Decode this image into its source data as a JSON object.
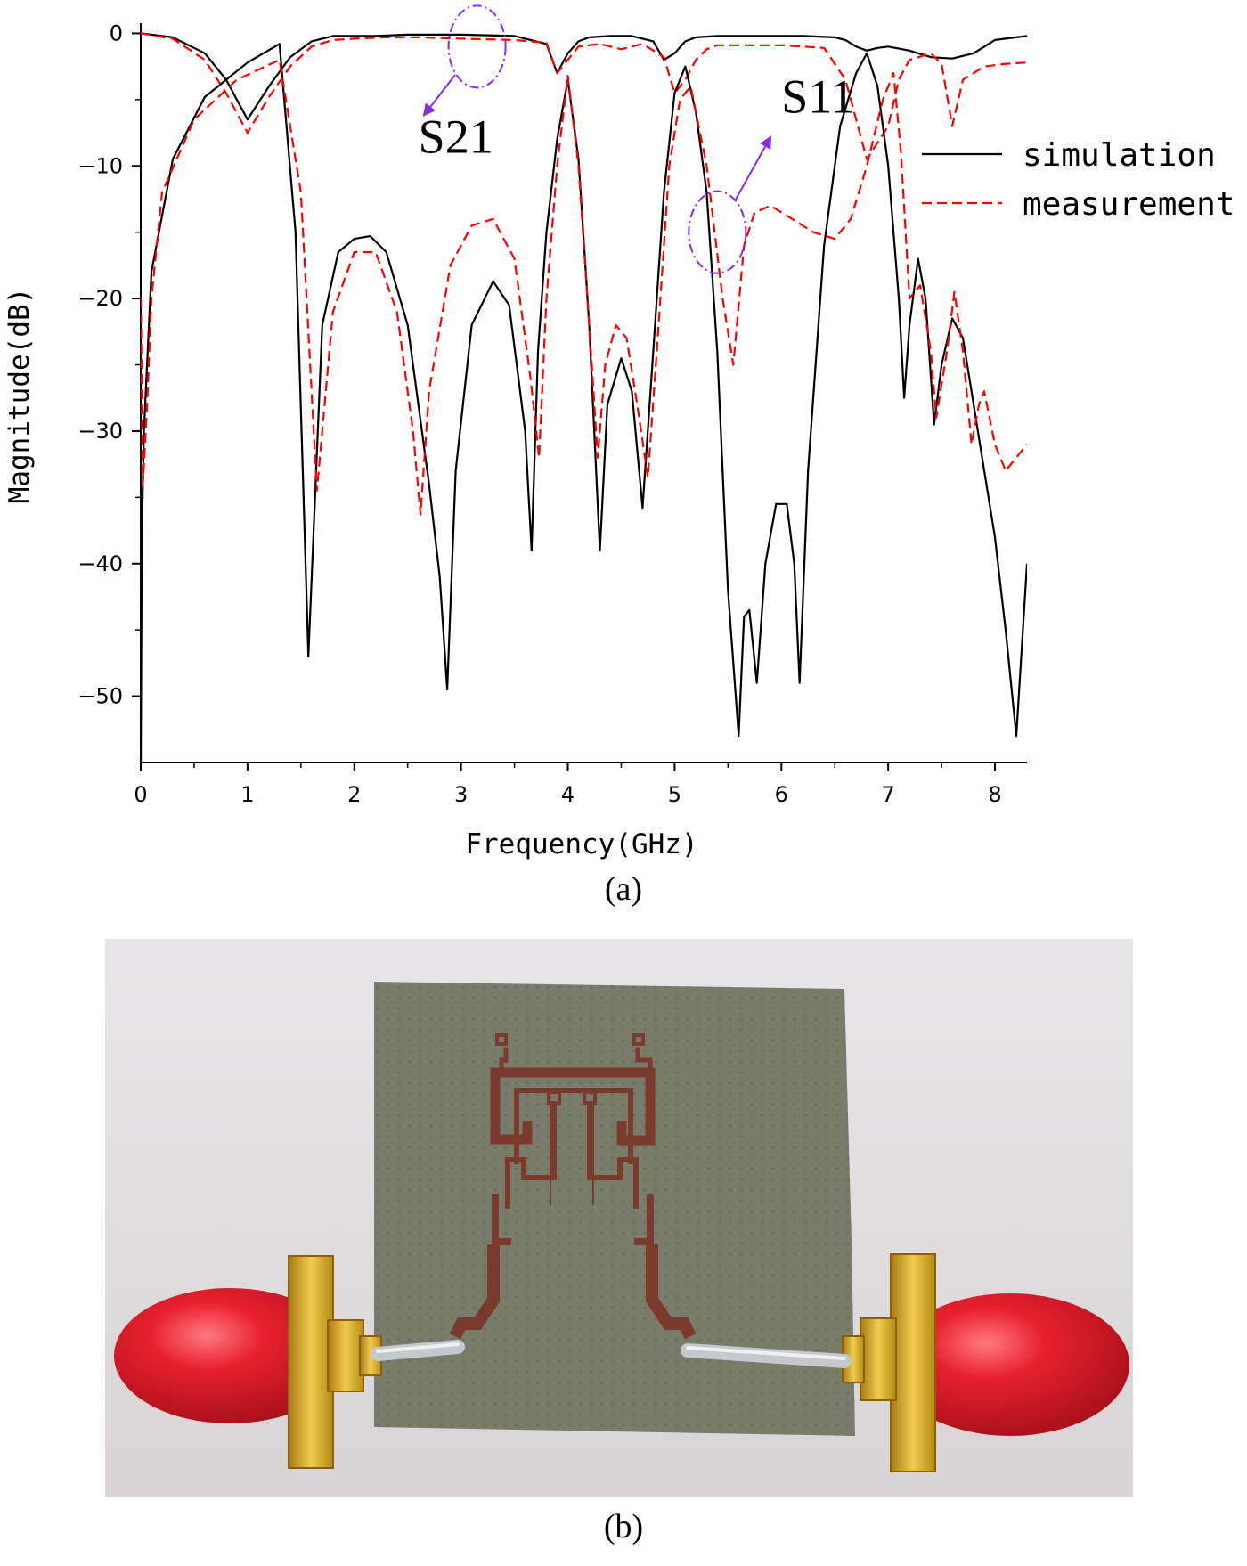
{
  "figure": {
    "caption_a": "(a)",
    "caption_b": "(b)"
  },
  "chart_data": {
    "type": "line",
    "xlabel": "Frequency(GHz)",
    "ylabel": "Magnitude(dB)",
    "xlim": [
      0,
      8.3
    ],
    "ylim": [
      -55,
      0.5
    ],
    "xticks": [
      0,
      1,
      2,
      3,
      4,
      5,
      6,
      7,
      8
    ],
    "yticks": [
      0,
      -10,
      -20,
      -30,
      -40,
      -50
    ],
    "grid": false,
    "legend": {
      "placement": "top-right",
      "entries": [
        {
          "label": "simulation",
          "color": "#000000",
          "style": "solid"
        },
        {
          "label": "measurement",
          "color": "#ff0000",
          "style": "dashed"
        }
      ]
    },
    "annotations": [
      {
        "text": "S21",
        "x": 2.6,
        "y": -9.0,
        "ellipse_center": [
          3.15,
          -1.0
        ],
        "arrow_to": [
          2.65,
          -6.2
        ]
      },
      {
        "text": "S11",
        "x": 6.0,
        "y": -6.0,
        "ellipse_center": [
          5.4,
          -15.0
        ],
        "arrow_to": [
          5.9,
          -7.8
        ]
      }
    ],
    "series": [
      {
        "name": "simulation",
        "trace": "S21",
        "color": "#000000",
        "style": "solid",
        "x": [
          0,
          0.3,
          0.6,
          0.8,
          1.0,
          1.2,
          1.4,
          1.6,
          1.8,
          2.0,
          2.2,
          2.5,
          3.0,
          3.5,
          3.8,
          3.9,
          4.0,
          4.1,
          4.2,
          4.4,
          4.6,
          4.8,
          4.9,
          5.0,
          5.1,
          5.2,
          5.4,
          5.8,
          6.2,
          6.5,
          6.6,
          6.7,
          6.8,
          6.9,
          7.0,
          7.2,
          7.4,
          7.6,
          7.8,
          8.0,
          8.3
        ],
        "y": [
          0,
          -0.3,
          -1.5,
          -3.5,
          -6.5,
          -4.0,
          -1.8,
          -0.6,
          -0.2,
          -0.2,
          -0.2,
          -0.1,
          -0.1,
          -0.2,
          -0.8,
          -3.0,
          -1.5,
          -0.6,
          -0.3,
          -0.2,
          -0.2,
          -0.6,
          -2.0,
          -1.5,
          -0.6,
          -0.3,
          -0.2,
          -0.2,
          -0.2,
          -0.3,
          -0.5,
          -1.0,
          -1.3,
          -1.1,
          -1.0,
          -1.3,
          -1.8,
          -1.9,
          -1.5,
          -0.5,
          -0.2
        ]
      },
      {
        "name": "measurement",
        "trace": "S21",
        "color": "#ff0000",
        "style": "dashed",
        "x": [
          0,
          0.3,
          0.6,
          0.8,
          1.0,
          1.2,
          1.4,
          1.6,
          1.8,
          2.0,
          2.3,
          2.6,
          3.0,
          3.5,
          3.8,
          3.9,
          4.0,
          4.1,
          4.3,
          4.5,
          4.7,
          4.9,
          5.0,
          5.1,
          5.2,
          5.3,
          5.4,
          5.6,
          6.0,
          6.4,
          6.6,
          6.8,
          7.0,
          7.1,
          7.2,
          7.4,
          7.5,
          7.6,
          7.7,
          7.9,
          8.1,
          8.3
        ],
        "y": [
          0,
          -0.4,
          -2.0,
          -4.5,
          -7.5,
          -4.8,
          -2.5,
          -1.0,
          -0.5,
          -0.4,
          -0.3,
          -0.3,
          -0.4,
          -0.5,
          -0.7,
          -3.0,
          -2.0,
          -1.0,
          -0.8,
          -1.2,
          -0.8,
          -1.8,
          -4.5,
          -3.5,
          -2.0,
          -1.2,
          -0.9,
          -0.9,
          -0.9,
          -1.1,
          -3.5,
          -9.5,
          -7.0,
          -3.5,
          -2.0,
          -1.5,
          -2.3,
          -7.0,
          -3.5,
          -2.5,
          -2.3,
          -2.2
        ]
      },
      {
        "name": "simulation",
        "trace": "S11",
        "color": "#000000",
        "style": "solid",
        "x": [
          0,
          0.01,
          0.03,
          0.1,
          0.3,
          0.6,
          1.0,
          1.3,
          1.45,
          1.57,
          1.7,
          1.85,
          2.0,
          2.15,
          2.3,
          2.5,
          2.7,
          2.8,
          2.87,
          2.95,
          3.1,
          3.3,
          3.45,
          3.6,
          3.66,
          3.72,
          3.8,
          3.9,
          4.0,
          4.1,
          4.2,
          4.3,
          4.37,
          4.5,
          4.6,
          4.7,
          4.8,
          4.9,
          5.0,
          5.1,
          5.2,
          5.3,
          5.4,
          5.5,
          5.6,
          5.65,
          5.7,
          5.77,
          5.85,
          5.95,
          6.05,
          6.12,
          6.17,
          6.25,
          6.4,
          6.55,
          6.7,
          6.8,
          6.9,
          7.0,
          7.1,
          7.15,
          7.2,
          7.28,
          7.35,
          7.43,
          7.5,
          7.6,
          7.7,
          7.8,
          7.9,
          8.0,
          8.1,
          8.2,
          8.3
        ],
        "y": [
          -55,
          -38,
          -30,
          -18,
          -9.5,
          -4.8,
          -2.2,
          -0.8,
          -15.0,
          -47.0,
          -22.0,
          -16.5,
          -15.5,
          -15.3,
          -16.5,
          -22.0,
          -34.0,
          -41.0,
          -49.5,
          -33.0,
          -22.0,
          -18.7,
          -20.5,
          -30.0,
          -39.0,
          -24.0,
          -15.0,
          -8.0,
          -3.5,
          -9.5,
          -22.0,
          -39.0,
          -28.0,
          -24.5,
          -27.0,
          -35.8,
          -24.0,
          -12.0,
          -4.5,
          -2.5,
          -6.0,
          -12.0,
          -24.0,
          -42.0,
          -53.0,
          -44.0,
          -43.5,
          -49.0,
          -40.0,
          -35.5,
          -35.5,
          -40.0,
          -49.0,
          -33.0,
          -16.0,
          -7.0,
          -3.0,
          -1.5,
          -4.0,
          -10.0,
          -20.0,
          -27.5,
          -22.0,
          -17.0,
          -20.0,
          -29.5,
          -25.0,
          -21.5,
          -23.0,
          -28.0,
          -33.0,
          -38.0,
          -45.0,
          -53.0,
          -40.0
        ]
      },
      {
        "name": "measurement",
        "trace": "S11",
        "color": "#ff0000",
        "style": "dashed",
        "x": [
          0,
          0.02,
          0.06,
          0.1,
          0.2,
          0.5,
          0.9,
          1.3,
          1.5,
          1.65,
          1.8,
          2.0,
          2.2,
          2.4,
          2.55,
          2.62,
          2.7,
          2.9,
          3.1,
          3.3,
          3.5,
          3.65,
          3.73,
          3.8,
          3.9,
          4.0,
          4.1,
          4.2,
          4.28,
          4.35,
          4.45,
          4.55,
          4.65,
          4.75,
          4.85,
          4.95,
          5.05,
          5.15,
          5.3,
          5.45,
          5.55,
          5.65,
          5.75,
          5.9,
          6.1,
          6.3,
          6.5,
          6.65,
          6.8,
          6.95,
          7.05,
          7.12,
          7.2,
          7.3,
          7.4,
          7.45,
          7.55,
          7.62,
          7.7,
          7.78,
          7.85,
          7.9,
          8.0,
          8.1,
          8.2,
          8.3
        ],
        "y": [
          -20,
          -34,
          -28,
          -20,
          -12,
          -6.5,
          -3.5,
          -2.0,
          -12.0,
          -34.5,
          -21.0,
          -16.5,
          -16.5,
          -21.0,
          -30.0,
          -36.3,
          -27.0,
          -17.5,
          -14.5,
          -14.0,
          -17.0,
          -26.0,
          -32.0,
          -20.0,
          -10.0,
          -3.2,
          -10.0,
          -22.0,
          -32.0,
          -25.0,
          -22.0,
          -23.0,
          -28.0,
          -33.5,
          -22.0,
          -10.0,
          -5.0,
          -4.0,
          -10.0,
          -20.0,
          -25.0,
          -16.0,
          -13.5,
          -13.0,
          -14.0,
          -15.0,
          -15.5,
          -14.0,
          -10.0,
          -5.0,
          -3.0,
          -9.0,
          -20.0,
          -19.0,
          -24.0,
          -29.0,
          -24.0,
          -19.5,
          -24.0,
          -31.0,
          -28.0,
          -27.0,
          -31.0,
          -33.0,
          -32.0,
          -31.0
        ]
      }
    ]
  },
  "photo": {
    "subject": "microstrip-filter-prototype",
    "substrate_color": "#7a7c6b",
    "trace_color": "#7a3a2c",
    "connector_color": "#d4a41c",
    "cap_color": "#e8202e",
    "background_color": "#e4e2e4"
  }
}
